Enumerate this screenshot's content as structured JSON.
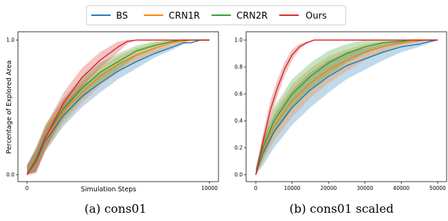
{
  "legend": {
    "items": [
      {
        "name": "BS",
        "color": "#1f77b4"
      },
      {
        "name": "CRN1R",
        "color": "#ff7f0e"
      },
      {
        "name": "CRN2R",
        "color": "#2ca02c"
      },
      {
        "name": "Ours",
        "color": "#d62728"
      }
    ]
  },
  "chart_data": [
    {
      "type": "line",
      "caption": "(a) cons01",
      "xlabel": "Simulation Steps",
      "ylabel": "Percentage of Explored Area",
      "xlim": [
        0,
        10000
      ],
      "ylim": [
        0,
        1
      ],
      "x_ticks": [
        0,
        10000
      ],
      "x_tick_labels": [
        "0",
        "10000"
      ],
      "y_ticks": [
        0,
        1
      ],
      "y_tick_labels": [
        "0.0",
        "1.0"
      ],
      "grid": false,
      "series": [
        {
          "name": "BS",
          "color": "#1f77b4",
          "x": [
            0,
            500,
            1000,
            2000,
            3000,
            4000,
            5000,
            6000,
            7000,
            8000,
            8600,
            9000,
            9500,
            10000
          ],
          "y": [
            0,
            0.1,
            0.25,
            0.44,
            0.58,
            0.68,
            0.77,
            0.84,
            0.9,
            0.95,
            0.98,
            0.98,
            1.0,
            1.0
          ],
          "band": [
            0.06,
            0.08,
            0.08,
            0.08,
            0.08,
            0.07,
            0.06,
            0.05,
            0.03,
            0.02,
            0.01,
            0,
            0,
            0
          ]
        },
        {
          "name": "CRN1R",
          "color": "#ff7f0e",
          "x": [
            0,
            500,
            1000,
            2000,
            3000,
            4000,
            5000,
            6000,
            7000,
            8000,
            9000,
            9500,
            10000
          ],
          "y": [
            0,
            0.11,
            0.26,
            0.47,
            0.61,
            0.73,
            0.82,
            0.89,
            0.94,
            0.98,
            1.0,
            1.0,
            1.0
          ],
          "band": [
            0.07,
            0.09,
            0.09,
            0.09,
            0.08,
            0.07,
            0.06,
            0.05,
            0.04,
            0.02,
            0,
            0,
            0
          ]
        },
        {
          "name": "CRN2R",
          "color": "#2ca02c",
          "x": [
            0,
            500,
            1000,
            2000,
            3000,
            4000,
            5000,
            6000,
            7000,
            8000,
            8500,
            9000,
            10000
          ],
          "y": [
            0,
            0.12,
            0.28,
            0.49,
            0.64,
            0.76,
            0.84,
            0.92,
            0.96,
            0.99,
            1.0,
            1.0,
            1.0
          ],
          "band": [
            0.07,
            0.09,
            0.09,
            0.08,
            0.08,
            0.07,
            0.06,
            0.04,
            0.03,
            0.01,
            0,
            0,
            0
          ]
        },
        {
          "name": "Ours",
          "color": "#d62728",
          "x": [
            0,
            500,
            1000,
            2000,
            3000,
            4000,
            5000,
            5500,
            6000,
            7000,
            8000,
            9000,
            10000
          ],
          "y": [
            0,
            0.1,
            0.27,
            0.53,
            0.72,
            0.85,
            0.95,
            0.99,
            1.0,
            1.0,
            1.0,
            1.0,
            1.0
          ],
          "band": [
            0.07,
            0.09,
            0.09,
            0.08,
            0.07,
            0.06,
            0.04,
            0.02,
            0,
            0,
            0,
            0,
            0
          ]
        }
      ]
    },
    {
      "type": "line",
      "caption": "(b) cons01 scaled",
      "xlabel": "",
      "ylabel": "",
      "xlim": [
        0,
        50000
      ],
      "ylim": [
        0,
        1
      ],
      "x_ticks": [
        0,
        10000,
        20000,
        30000,
        40000,
        50000
      ],
      "x_tick_labels": [
        "0",
        "10000",
        "20000",
        "30000",
        "40000",
        "50000"
      ],
      "y_ticks": [
        0,
        0.2,
        0.4,
        0.6,
        0.8,
        1.0
      ],
      "y_tick_labels": [
        "0.0",
        "0.2",
        "0.4",
        "0.6",
        "0.8",
        "1.0"
      ],
      "grid": false,
      "series": [
        {
          "name": "BS",
          "color": "#1f77b4",
          "x": [
            0,
            2000,
            5000,
            10000,
            15000,
            20000,
            25000,
            30000,
            35000,
            40000,
            45000,
            48000,
            50000
          ],
          "y": [
            0,
            0.16,
            0.32,
            0.5,
            0.63,
            0.73,
            0.81,
            0.86,
            0.91,
            0.95,
            0.97,
            0.99,
            1.0
          ],
          "band": [
            0.05,
            0.09,
            0.12,
            0.13,
            0.13,
            0.12,
            0.1,
            0.08,
            0.06,
            0.04,
            0.02,
            0.01,
            0
          ]
        },
        {
          "name": "CRN1R",
          "color": "#ff7f0e",
          "x": [
            0,
            2000,
            5000,
            10000,
            15000,
            20000,
            25000,
            30000,
            35000,
            40000,
            44000,
            47000,
            50000
          ],
          "y": [
            0,
            0.18,
            0.36,
            0.55,
            0.68,
            0.78,
            0.85,
            0.91,
            0.95,
            0.98,
            0.99,
            1.0,
            1.0
          ],
          "band": [
            0.05,
            0.08,
            0.11,
            0.12,
            0.11,
            0.1,
            0.08,
            0.06,
            0.04,
            0.02,
            0.01,
            0,
            0
          ]
        },
        {
          "name": "CRN2R",
          "color": "#2ca02c",
          "x": [
            0,
            2000,
            5000,
            10000,
            15000,
            20000,
            25000,
            30000,
            35000,
            40000,
            43000,
            47000,
            50000
          ],
          "y": [
            0,
            0.2,
            0.4,
            0.6,
            0.73,
            0.83,
            0.9,
            0.95,
            0.98,
            0.99,
            1.0,
            1.0,
            1.0
          ],
          "band": [
            0.05,
            0.08,
            0.1,
            0.11,
            0.1,
            0.09,
            0.07,
            0.05,
            0.03,
            0.02,
            0.01,
            0,
            0
          ]
        },
        {
          "name": "Ours",
          "color": "#d62728",
          "x": [
            0,
            2000,
            4000,
            6000,
            8000,
            10000,
            12000,
            14000,
            16000,
            18000,
            25000,
            35000,
            50000
          ],
          "y": [
            0,
            0.25,
            0.48,
            0.65,
            0.79,
            0.89,
            0.95,
            0.98,
            1.0,
            1.0,
            1.0,
            1.0,
            1.0
          ],
          "band": [
            0.04,
            0.06,
            0.07,
            0.06,
            0.05,
            0.04,
            0.02,
            0.01,
            0,
            0,
            0,
            0,
            0
          ]
        }
      ]
    }
  ]
}
